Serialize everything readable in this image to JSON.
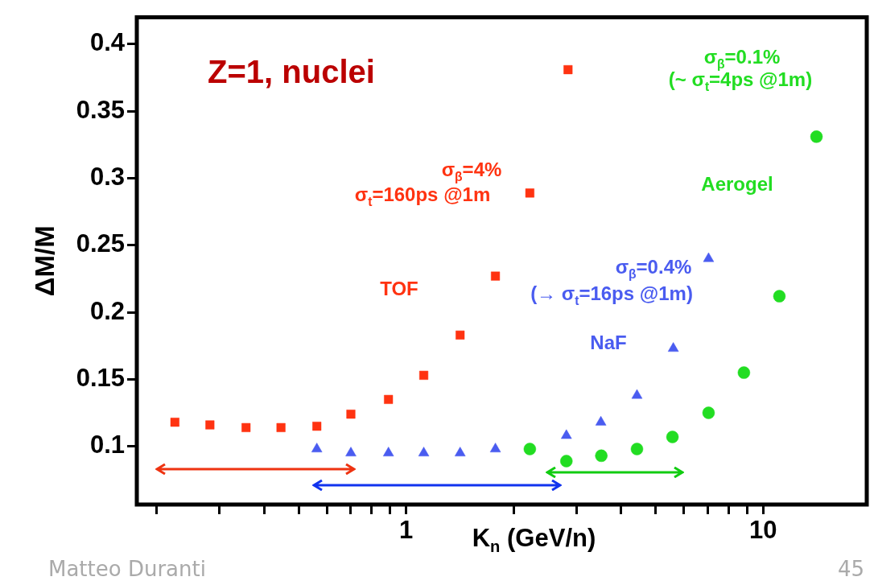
{
  "chart_data": {
    "type": "scatter",
    "xlabel": "K$_{n}$ (GeV/n)",
    "ylabel": "ΔM/M",
    "log": "x",
    "xlim": [
      0.176,
      19.5
    ],
    "ylim": [
      0.0566,
      0.42
    ],
    "xticks": [
      {
        "value": 0.2,
        "label": null
      },
      {
        "value": 0.3,
        "label": null
      },
      {
        "value": 0.4,
        "label": null
      },
      {
        "value": 0.5,
        "label": null
      },
      {
        "value": 0.6,
        "label": null
      },
      {
        "value": 0.7,
        "label": null
      },
      {
        "value": 0.8,
        "label": null
      },
      {
        "value": 0.9,
        "label": null
      },
      1,
      {
        "value": 2,
        "label": null
      },
      {
        "value": 3,
        "label": null
      },
      {
        "value": 4,
        "label": null
      },
      {
        "value": 5,
        "label": null
      },
      {
        "value": 6,
        "label": null
      },
      {
        "value": 7,
        "label": null
      },
      {
        "value": 8,
        "label": null
      },
      {
        "value": 9,
        "label": null
      },
      10
    ],
    "yticks": [
      0.1,
      0.15,
      0.2,
      0.25,
      0.3,
      0.35,
      0.4
    ],
    "grid": false,
    "legend": false,
    "series": [
      {
        "color": "#ff3311",
        "marker": "square",
        "x": [
          0.225,
          0.282,
          0.356,
          0.446,
          0.562,
          0.7,
          0.892,
          1.12,
          1.416,
          1.778,
          2.22,
          2.84
        ],
        "values": [
          0.118,
          0.116,
          0.114,
          0.114,
          0.115,
          0.124,
          0.135,
          0.153,
          0.183,
          0.227,
          0.289,
          0.381
        ]
      },
      {
        "color": "#4a5cf0",
        "marker": "triangle",
        "x": [
          0.562,
          0.7,
          0.892,
          1.12,
          1.416,
          1.778,
          2.81,
          3.51,
          4.43,
          5.6,
          7.03
        ],
        "values": [
          0.098,
          0.095,
          0.095,
          0.095,
          0.095,
          0.098,
          0.108,
          0.118,
          0.138,
          0.173,
          0.24
        ]
      },
      {
        "color": "#22dd22",
        "marker": "circle",
        "x": [
          2.22,
          2.81,
          3.52,
          4.43,
          5.57,
          7.03,
          8.83,
          11.1,
          14.1
        ],
        "values": [
          0.098,
          0.089,
          0.093,
          0.098,
          0.107,
          0.125,
          0.155,
          0.212,
          0.331
        ]
      }
    ],
    "annotations": [
      "Z=1, nuclei",
      "σ$_{β}$=4%",
      "σ$_{t}$=160ps @1m",
      "TOF",
      "σ$_{β}$=0.4%",
      "(→ σ$_{t}$=16ps @1m)",
      "NaF",
      "σ$_{β}$=0.1%",
      "(~ σ$_{t}$=4ps @1m)",
      "Aerogel",
      "Matteo Duranti",
      "45"
    ]
  }
}
